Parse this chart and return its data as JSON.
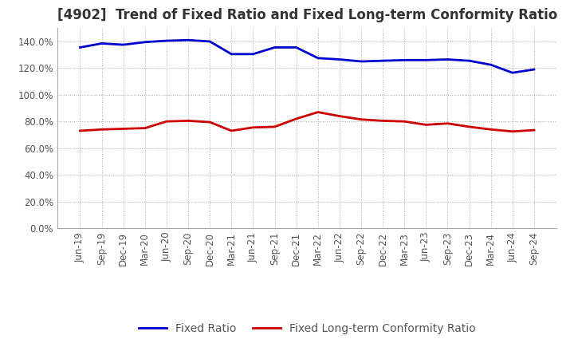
{
  "title": "[4902]  Trend of Fixed Ratio and Fixed Long-term Conformity Ratio",
  "x_labels": [
    "Jun-19",
    "Sep-19",
    "Dec-19",
    "Mar-20",
    "Jun-20",
    "Sep-20",
    "Dec-20",
    "Mar-21",
    "Jun-21",
    "Sep-21",
    "Dec-21",
    "Mar-22",
    "Jun-22",
    "Sep-22",
    "Dec-22",
    "Mar-23",
    "Jun-23",
    "Sep-23",
    "Dec-23",
    "Mar-24",
    "Jun-24",
    "Sep-24"
  ],
  "fixed_ratio": [
    135.5,
    138.5,
    137.5,
    139.5,
    140.5,
    141.0,
    140.0,
    130.5,
    130.5,
    135.5,
    135.5,
    127.5,
    126.5,
    125.0,
    125.5,
    126.0,
    126.0,
    126.5,
    125.5,
    122.5,
    116.5,
    119.0
  ],
  "fixed_lt_ratio": [
    73.0,
    74.0,
    74.5,
    75.0,
    80.0,
    80.5,
    79.5,
    73.0,
    75.5,
    76.0,
    82.0,
    87.0,
    84.0,
    81.5,
    80.5,
    80.0,
    77.5,
    78.5,
    76.0,
    74.0,
    72.5,
    73.5
  ],
  "fixed_ratio_color": "#0000cc",
  "fixed_lt_ratio_color": "#cc0000",
  "ylim": [
    0,
    150
  ],
  "yticks": [
    0,
    20,
    40,
    60,
    80,
    100,
    120,
    140
  ],
  "background_color": "#ffffff",
  "grid_color": "#aaaaaa",
  "title_fontsize": 12,
  "legend_fontsize": 10,
  "tick_fontsize": 8.5
}
